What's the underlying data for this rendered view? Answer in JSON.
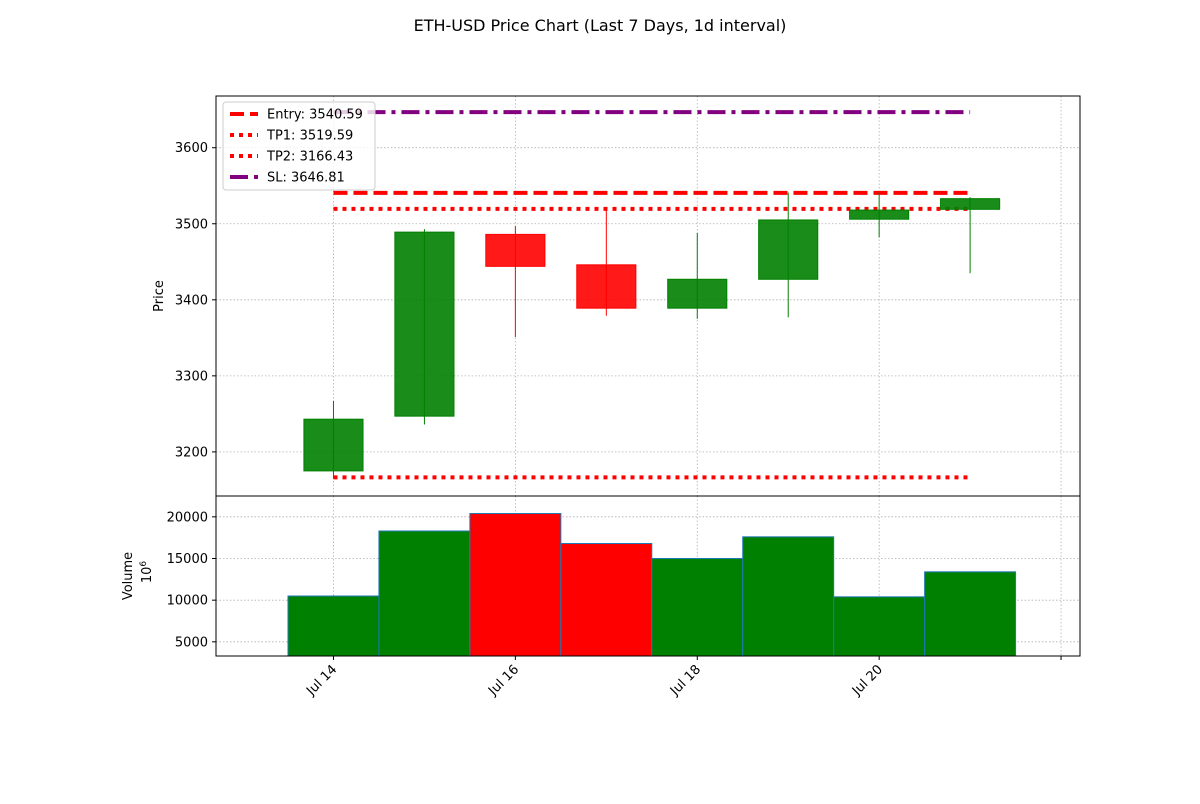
{
  "chart_data": {
    "type": "candlestick",
    "title": "ETH-USD Price Chart (Last 7 Days, 1d interval)",
    "colors": {
      "up": "#008000",
      "down": "#ff0000",
      "sl": "#800080",
      "grid": "#b0b0b0"
    },
    "price_panel": {
      "ylabel": "Price",
      "ylim": [
        3142,
        3668
      ],
      "yticks": [
        3200,
        3300,
        3400,
        3500,
        3600
      ],
      "grid": true,
      "candles": [
        {
          "date": "2024-07-14",
          "open": 3175,
          "high": 3267,
          "low": 3165,
          "close": 3243
        },
        {
          "date": "2024-07-15",
          "open": 3247,
          "high": 3493,
          "low": 3236,
          "close": 3489
        },
        {
          "date": "2024-07-16",
          "open": 3486,
          "high": 3497,
          "low": 3351,
          "close": 3444
        },
        {
          "date": "2024-07-17",
          "open": 3446,
          "high": 3520,
          "low": 3379,
          "close": 3389
        },
        {
          "date": "2024-07-18",
          "open": 3389,
          "high": 3488,
          "low": 3375,
          "close": 3427
        },
        {
          "date": "2024-07-19",
          "open": 3427,
          "high": 3541,
          "low": 3377,
          "close": 3505
        },
        {
          "date": "2024-07-20",
          "open": 3506,
          "high": 3541,
          "low": 3482,
          "close": 3518
        },
        {
          "date": "2024-07-21",
          "open": 3519,
          "high": 3535,
          "low": 3435,
          "close": 3533
        }
      ],
      "levels": [
        {
          "label": "Entry: 3540.59",
          "value": 3540.59,
          "color": "#ff0000",
          "style": "dashed"
        },
        {
          "label": "TP1: 3519.59",
          "value": 3519.59,
          "color": "#ff0000",
          "style": "dotted"
        },
        {
          "label": "TP2: 3166.43",
          "value": 3166.43,
          "color": "#ff0000",
          "style": "dotted"
        },
        {
          "label": "SL: 3646.81",
          "value": 3646.81,
          "color": "#800080",
          "style": "dashdot"
        }
      ],
      "levels_x_range": [
        "2024-07-14",
        "2024-07-21"
      ],
      "legend_position": "upper left"
    },
    "volume_panel": {
      "ylabel": "Volume",
      "scale_label": "10^6",
      "ylim": [
        3300,
        22500
      ],
      "yticks": [
        5000,
        10000,
        15000,
        20000
      ],
      "grid": true,
      "bars": [
        {
          "date": "2024-07-14",
          "value": 10500,
          "direction": "up"
        },
        {
          "date": "2024-07-15",
          "value": 18300,
          "direction": "up"
        },
        {
          "date": "2024-07-16",
          "value": 20400,
          "direction": "down"
        },
        {
          "date": "2024-07-17",
          "value": 16800,
          "direction": "down"
        },
        {
          "date": "2024-07-18",
          "value": 15000,
          "direction": "up"
        },
        {
          "date": "2024-07-19",
          "value": 17600,
          "direction": "up"
        },
        {
          "date": "2024-07-20",
          "value": 10400,
          "direction": "up"
        },
        {
          "date": "2024-07-21",
          "value": 13400,
          "direction": "up"
        }
      ]
    },
    "x_axis": {
      "xlim": [
        "2024-07-12T17:00",
        "2024-07-22T05:00"
      ],
      "ticks": [
        {
          "date": "2024-07-14",
          "label": "Jul 14"
        },
        {
          "date": "2024-07-16",
          "label": "Jul 16"
        },
        {
          "date": "2024-07-18",
          "label": "Jul 18"
        },
        {
          "date": "2024-07-20",
          "label": "Jul 20"
        },
        {
          "date": "2024-07-22",
          "label": ""
        }
      ]
    }
  }
}
